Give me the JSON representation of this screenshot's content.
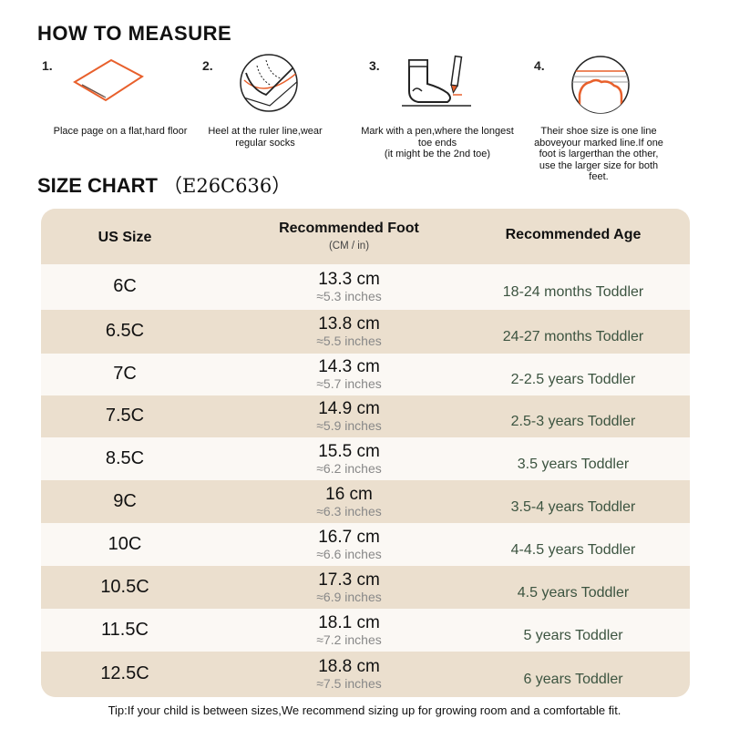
{
  "measure": {
    "title": "HOW TO MEASURE",
    "steps": [
      {
        "num": "1.",
        "caption": "Place page on a flat,hard floor",
        "icon": "paper-on-floor-icon"
      },
      {
        "num": "2.",
        "caption": "Heel at the ruler line,wear regular socks",
        "icon": "heel-on-ruler-icon"
      },
      {
        "num": "3.",
        "caption": "Mark with a pen,where the longest toe ends\n(it might be the 2nd toe)",
        "icon": "sock-and-pen-icon"
      },
      {
        "num": "4.",
        "caption": "Their shoe size is one line aboveyour marked line.If one foot is largerthan the other, use the larger size for both feet.",
        "icon": "toe-on-lines-icon"
      }
    ]
  },
  "chart": {
    "title": "SIZE CHART",
    "code": "（E26C636）",
    "headers": {
      "size": "US Size",
      "foot": "Recommended Foot",
      "foot_sub": "(CM / in)",
      "age": "Recommended Age"
    },
    "rows": [
      {
        "size": "6C",
        "cm": "13.3 cm",
        "inch": "≈5.3 inches",
        "age": "18-24 months Toddler"
      },
      {
        "size": "6.5C",
        "cm": "13.8 cm",
        "inch": "≈5.5 inches",
        "age": "24-27 months Toddler"
      },
      {
        "size": "7C",
        "cm": "14.3 cm",
        "inch": "≈5.7 inches",
        "age": "2-2.5 years Toddler"
      },
      {
        "size": "7.5C",
        "cm": "14.9 cm",
        "inch": "≈5.9 inches",
        "age": "2.5-3 years Toddler"
      },
      {
        "size": "8.5C",
        "cm": "15.5 cm",
        "inch": "≈6.2 inches",
        "age": "3.5 years Toddler"
      },
      {
        "size": "9C",
        "cm": "16 cm",
        "inch": "≈6.3 inches",
        "age": "3.5-4 years Toddler"
      },
      {
        "size": "10C",
        "cm": "16.7 cm",
        "inch": "≈6.6 inches",
        "age": "4-4.5 years Toddler"
      },
      {
        "size": "10.5C",
        "cm": "17.3 cm",
        "inch": "≈6.9 inches",
        "age": "4.5 years Toddler"
      },
      {
        "size": "11.5C",
        "cm": "18.1 cm",
        "inch": "≈7.2 inches",
        "age": "5 years Toddler"
      },
      {
        "size": "12.5C",
        "cm": "18.8 cm",
        "inch": "≈7.5 inches",
        "age": "6 years Toddler"
      }
    ]
  },
  "tip": "Tip:If your child is between sizes,We recommend sizing up for growing room and a comfortable fit.",
  "colors": {
    "accent": "#e8602c",
    "header_bg": "#ebdfce",
    "row_light": "#fbf8f4",
    "age_text": "#3c5440"
  }
}
